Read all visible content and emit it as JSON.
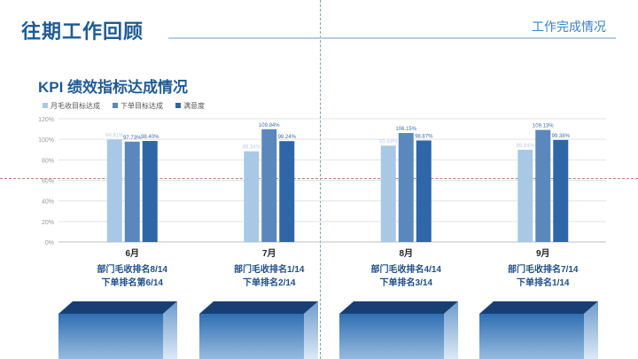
{
  "header": {
    "title": "往期工作回顾",
    "section": "工作完成情况"
  },
  "chart_data": {
    "type": "bar",
    "title": "KPI 绩效指标达成情况",
    "categories": [
      "6月",
      "7月",
      "8月",
      "9月"
    ],
    "category_notes": [
      [
        "部门毛收排名8/14",
        "下单排名第6/14"
      ],
      [
        "部门毛收排名1/14",
        "下单排名2/14"
      ],
      [
        "部门毛收排名4/14",
        "下单排名3/14"
      ],
      [
        "部门毛收排名7/14",
        "下单排名1/14"
      ]
    ],
    "series": [
      {
        "name": "月毛收目标达成",
        "color": "#a9c8e6",
        "values": [
          99.81,
          88.34,
          93.84,
          89.84
        ],
        "labels": [
          "99.81%",
          "88.34%",
          "93.84%",
          "89.84%"
        ]
      },
      {
        "name": "下单目标达成",
        "color": "#5a88bd",
        "values": [
          97.73,
          109.84,
          106.15,
          109.13
        ],
        "labels": [
          "97.73%",
          "109.84%",
          "106.15%",
          "109.13%"
        ]
      },
      {
        "name": "满意度",
        "color": "#2e66a8",
        "values": [
          98.4,
          98.24,
          98.87,
          99.38
        ],
        "labels": [
          "98.40%",
          "98.24%",
          "98.87%",
          "99.38%"
        ]
      }
    ],
    "yticks": [
      "120%",
      "100%",
      "80%",
      "60%",
      "40%",
      "20%",
      "0%"
    ],
    "ylim": [
      0,
      120
    ],
    "grid": true,
    "legend": "top-left"
  }
}
